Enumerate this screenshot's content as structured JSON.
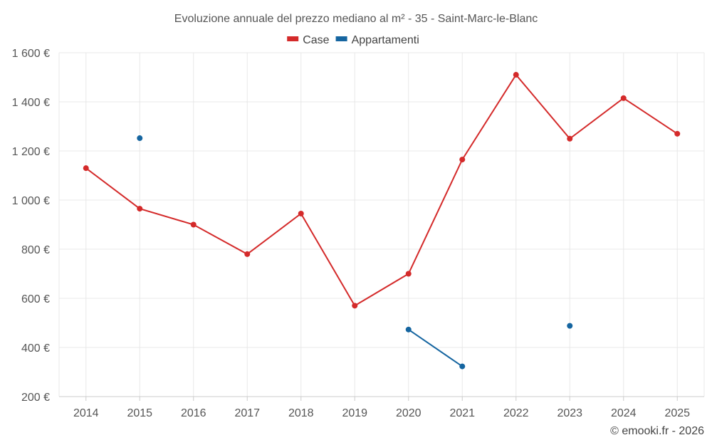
{
  "chart_data": {
    "type": "line",
    "title": "Evoluzione annuale del prezzo mediano al m² - 35 - Saint-Marc-le-Blanc",
    "categories": [
      "2014",
      "2015",
      "2016",
      "2017",
      "2018",
      "2019",
      "2020",
      "2021",
      "2022",
      "2023",
      "2024",
      "2025"
    ],
    "ylim": [
      200,
      1600
    ],
    "yticks": [
      200,
      400,
      600,
      800,
      1000,
      1200,
      1400,
      1600
    ],
    "ytick_labels": [
      "200 €",
      "400 €",
      "600 €",
      "800 €",
      "1 000 €",
      "1 200 €",
      "1 400 €",
      "1 600 €"
    ],
    "grid": true,
    "legend_position": "top-center",
    "series": [
      {
        "name": "Case",
        "color": "#d42a2a",
        "values": [
          1130,
          965,
          900,
          780,
          945,
          570,
          700,
          1165,
          1510,
          1250,
          1415,
          1270
        ]
      },
      {
        "name": "Appartamenti",
        "color": "#1565a0",
        "values": [
          null,
          1252,
          null,
          null,
          null,
          null,
          473,
          323,
          null,
          488,
          null,
          null
        ]
      }
    ]
  },
  "credit": "© emooki.fr - 2026"
}
